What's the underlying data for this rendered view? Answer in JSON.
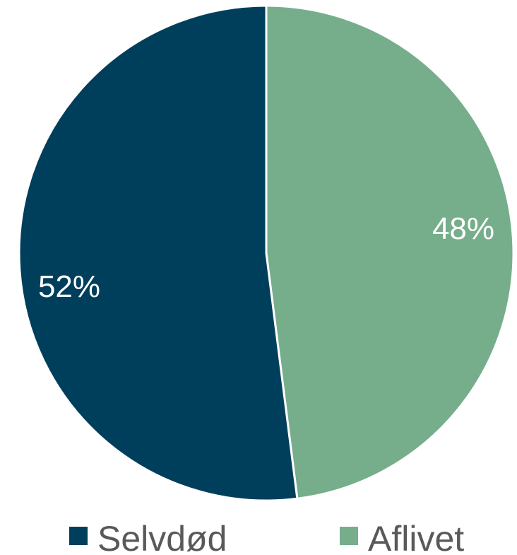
{
  "chart_data": {
    "type": "pie",
    "categories": [
      "Aflivet",
      "Selvdød"
    ],
    "values": [
      48,
      52
    ],
    "labels": [
      "48%",
      "52%"
    ],
    "colors": [
      "#76ae8c",
      "#003f5c"
    ],
    "legend": {
      "placement": "bottom",
      "items": [
        {
          "label": "Selvdød",
          "color": "#003f5c"
        },
        {
          "label": "Aflivet",
          "color": "#76ae8c"
        }
      ]
    }
  }
}
